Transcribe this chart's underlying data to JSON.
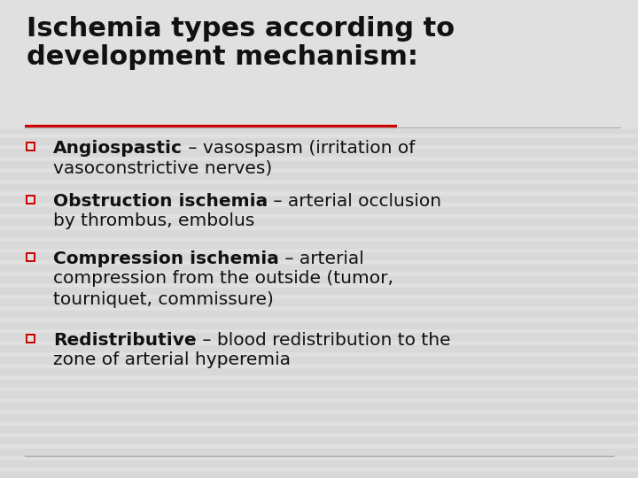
{
  "background_color": "#e0e0e0",
  "title_line1": "Ischemia types according to",
  "title_line2": "development mechanism:",
  "title_color": "#111111",
  "title_fontsize": 22,
  "red_line_color": "#cc0000",
  "bottom_line_color": "#aaaaaa",
  "bullet_color": "#cc0000",
  "text_color": "#111111",
  "body_fontsize": 14.5,
  "stripe_color": "#d8d8d8",
  "items": [
    {
      "bold_part": "Angiospastic",
      "normal_part": " – vasospasm (irritation of",
      "continuation": "vasoconstrictive nerves)"
    },
    {
      "bold_part": "Obstruction ischemia",
      "normal_part": " – arterial occlusion",
      "continuation": "by thrombus, embolus"
    },
    {
      "bold_part": "Compression ischemia",
      "normal_part": " – arterial",
      "continuation": "compression from the outside (tumor,\ntourniquet, commissure)"
    },
    {
      "bold_part": "Redistributive",
      "normal_part": " – blood redistribution to the",
      "continuation": "zone of arterial hyperemia"
    }
  ]
}
